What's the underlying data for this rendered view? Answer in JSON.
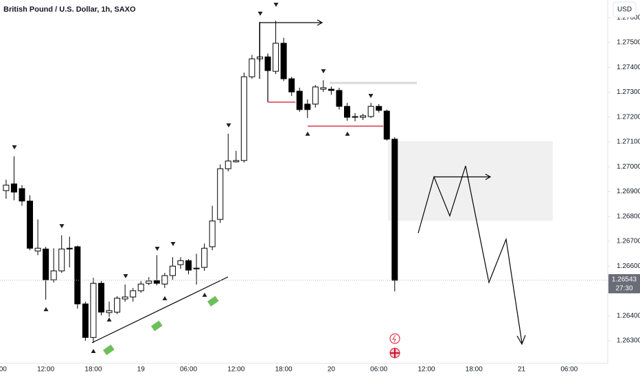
{
  "chart_data": {
    "type": "candlestick",
    "title": "British Pound / U.S. Dollar, 1h, SAXO",
    "currency": "USD",
    "x": [
      7,
      8,
      9,
      10,
      11,
      12,
      13,
      14,
      15,
      16,
      17,
      18,
      19,
      20,
      21,
      22,
      23,
      24,
      25,
      26,
      27,
      28,
      29,
      30,
      31,
      32,
      33,
      34,
      35,
      36,
      37,
      38,
      39,
      40,
      41,
      42,
      43,
      44,
      45,
      46,
      47,
      48,
      49,
      50,
      51,
      52,
      53,
      54,
      55,
      56
    ],
    "open": [
      1.26904,
      1.26931,
      1.26912,
      1.26862,
      1.26661,
      1.26669,
      1.26545,
      1.26581,
      1.26672,
      1.26678,
      1.26448,
      1.26313,
      1.26531,
      1.26413,
      1.26415,
      1.26468,
      1.26476,
      1.26501,
      1.26531,
      1.26542,
      1.26528,
      1.26562,
      1.26606,
      1.26622,
      1.26589,
      1.26595,
      1.26678,
      1.26788,
      1.26992,
      1.2702,
      1.27025,
      1.27362,
      1.27434,
      1.27442,
      1.27384,
      1.27497,
      1.27354,
      1.27304,
      1.27252,
      1.27252,
      1.27312,
      1.27312,
      1.27307,
      1.27243,
      1.27199,
      1.27199,
      1.27202,
      1.27243,
      1.27224,
      1.27111
    ],
    "high": [
      1.26948,
      1.27042,
      1.26926,
      1.26885,
      1.26788,
      1.26678,
      1.26672,
      1.26724,
      1.26719,
      1.26683,
      1.26457,
      1.26553,
      1.2654,
      1.26457,
      1.26479,
      1.26526,
      1.26512,
      1.2654,
      1.26556,
      1.26644,
      1.26573,
      1.26636,
      1.26636,
      1.26628,
      1.2665,
      1.26691,
      1.26843,
      1.27009,
      1.27133,
      1.27064,
      1.27379,
      1.2745,
      1.27583,
      1.27456,
      1.27588,
      1.27519,
      1.27362,
      1.27318,
      1.27271,
      1.27329,
      1.27348,
      1.27323,
      1.27318,
      1.27257,
      1.27216,
      1.27213,
      1.27257,
      1.27252,
      1.2723,
      1.27119
    ],
    "low": [
      1.26871,
      1.26865,
      1.26843,
      1.26664,
      1.26644,
      1.26465,
      1.26534,
      1.26573,
      1.26595,
      1.26429,
      1.26299,
      1.26291,
      1.26402,
      1.26396,
      1.26407,
      1.26457,
      1.26457,
      1.26493,
      1.26523,
      1.26523,
      1.26512,
      1.26545,
      1.26589,
      1.26567,
      1.26526,
      1.26581,
      1.26664,
      1.26774,
      1.26981,
      1.27017,
      1.27017,
      1.27354,
      1.27423,
      1.27373,
      1.27373,
      1.27345,
      1.27285,
      1.27221,
      1.27196,
      1.27238,
      1.27301,
      1.2729,
      1.2723,
      1.27185,
      1.27183,
      1.27188,
      1.27196,
      1.27218,
      1.27105,
      1.26498
    ],
    "close": [
      1.26926,
      1.26898,
      1.26862,
      1.26672,
      1.26672,
      1.26545,
      1.26581,
      1.26669,
      1.26669,
      1.26448,
      1.26313,
      1.26531,
      1.26415,
      1.26421,
      1.26471,
      1.26476,
      1.26501,
      1.26528,
      1.2654,
      1.26531,
      1.26562,
      1.266,
      1.26622,
      1.26584,
      1.26592,
      1.26672,
      1.26782,
      1.26992,
      1.27023,
      1.27025,
      1.27362,
      1.27434,
      1.27442,
      1.27387,
      1.27497,
      1.27354,
      1.27301,
      1.2723,
      1.2723,
      1.27321,
      1.27318,
      1.27307,
      1.27243,
      1.27199,
      1.27202,
      1.27205,
      1.27243,
      1.27227,
      1.27111,
      1.26543
    ],
    "up_color": "#ffffff",
    "down_color": "#000000",
    "xlim": [
      6.23,
      82.86
    ],
    "xticks": [
      {
        "value": 6,
        "label": "06:00"
      },
      {
        "value": 12,
        "label": "12:00"
      },
      {
        "value": 18,
        "label": "18:00"
      },
      {
        "value": 24,
        "label": "19"
      },
      {
        "value": 30,
        "label": "06:00"
      },
      {
        "value": 36,
        "label": "12:00"
      },
      {
        "value": 42,
        "label": "18:00"
      },
      {
        "value": 48,
        "label": "20"
      },
      {
        "value": 54,
        "label": "06:00"
      },
      {
        "value": 60,
        "label": "12:00"
      },
      {
        "value": 66,
        "label": "18:00"
      },
      {
        "value": 72,
        "label": "21"
      },
      {
        "value": 78,
        "label": "06:00"
      }
    ],
    "ylim": [
      1.26209,
      1.27671
    ],
    "yticks": [
      {
        "value": 1.263,
        "label": "1.26300"
      },
      {
        "value": 1.264,
        "label": "1.26400"
      },
      {
        "value": 1.266,
        "label": "1.26600"
      },
      {
        "value": 1.267,
        "label": "1.26700"
      },
      {
        "value": 1.268,
        "label": "1.26800"
      },
      {
        "value": 1.269,
        "label": "1.26900"
      },
      {
        "value": 1.27,
        "label": "1.27000"
      },
      {
        "value": 1.271,
        "label": "1.27100"
      },
      {
        "value": 1.272,
        "label": "1.27200"
      },
      {
        "value": 1.273,
        "label": "1.27300"
      },
      {
        "value": 1.274,
        "label": "1.27400"
      },
      {
        "value": 1.275,
        "label": "1.27500"
      },
      {
        "value": 1.276,
        "label": "1.27600"
      }
    ],
    "last_price": {
      "value": 1.26543,
      "label": "1.26543"
    },
    "countdown": "27:30"
  }
}
